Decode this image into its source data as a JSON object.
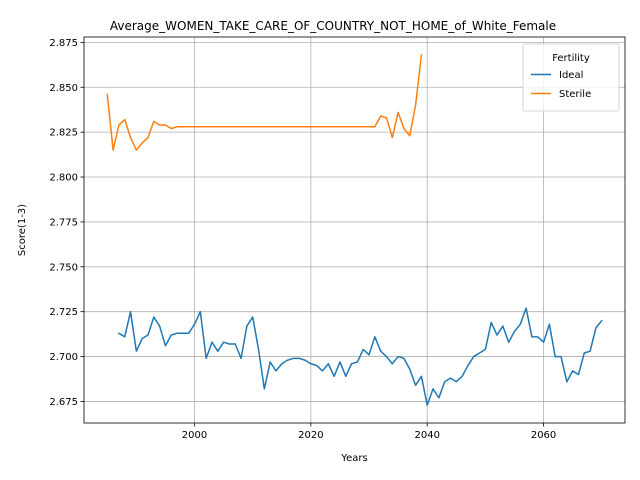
{
  "chart_data": {
    "type": "line",
    "title": "Average_WOMEN_TAKE_CARE_OF_COUNTRY_NOT_HOME_of_White_Female",
    "xlabel": "Years",
    "ylabel": "Score(1-3)",
    "xlim": [
      1981,
      2074
    ],
    "ylim": [
      2.663,
      2.878
    ],
    "xticks": [
      2000,
      2020,
      2040,
      2060
    ],
    "xtick_labels": [
      "2000",
      "2020",
      "2040",
      "2060"
    ],
    "yticks": [
      2.675,
      2.7,
      2.725,
      2.75,
      2.775,
      2.8,
      2.825,
      2.85,
      2.875
    ],
    "ytick_labels": [
      "2.675",
      "2.700",
      "2.725",
      "2.750",
      "2.775",
      "2.800",
      "2.825",
      "2.850",
      "2.875"
    ],
    "grid": true,
    "legend": {
      "title": "Fertility",
      "placement": "upper-right"
    },
    "series": [
      {
        "name": "Ideal",
        "color": "#1f77b4",
        "x": [
          1987,
          1988,
          1989,
          1990,
          1991,
          1992,
          1993,
          1994,
          1995,
          1996,
          1997,
          1998,
          1999,
          2000,
          2001,
          2002,
          2003,
          2004,
          2005,
          2006,
          2007,
          2008,
          2009,
          2010,
          2011,
          2012,
          2013,
          2014,
          2015,
          2016,
          2017,
          2018,
          2019,
          2020,
          2021,
          2022,
          2023,
          2024,
          2025,
          2026,
          2027,
          2028,
          2029,
          2030,
          2031,
          2032,
          2033,
          2034,
          2035,
          2036,
          2037,
          2038,
          2039,
          2040,
          2041,
          2042,
          2043,
          2044,
          2045,
          2046,
          2047,
          2048,
          2049,
          2050,
          2051,
          2052,
          2053,
          2054,
          2055,
          2056,
          2057,
          2058,
          2059,
          2060,
          2061,
          2062,
          2063,
          2064,
          2065,
          2066,
          2067,
          2068,
          2069,
          2070
        ],
        "y": [
          2.713,
          2.711,
          2.725,
          2.703,
          2.71,
          2.712,
          2.722,
          2.717,
          2.706,
          2.712,
          2.713,
          2.713,
          2.713,
          2.718,
          2.725,
          2.699,
          2.708,
          2.703,
          2.708,
          2.707,
          2.707,
          2.699,
          2.717,
          2.722,
          2.704,
          2.682,
          2.697,
          2.692,
          2.696,
          2.698,
          2.699,
          2.699,
          2.698,
          2.696,
          2.695,
          2.692,
          2.696,
          2.689,
          2.697,
          2.689,
          2.696,
          2.697,
          2.704,
          2.701,
          2.711,
          2.703,
          2.7,
          2.696,
          2.7,
          2.699,
          2.693,
          2.684,
          2.689,
          2.673,
          2.682,
          2.677,
          2.686,
          2.688,
          2.686,
          2.689,
          2.695,
          2.7,
          2.702,
          2.704,
          2.719,
          2.712,
          2.717,
          2.708,
          2.714,
          2.718,
          2.727,
          2.711,
          2.711,
          2.708,
          2.718,
          2.7,
          2.7,
          2.686,
          2.692,
          2.69,
          2.702,
          2.703,
          2.716,
          2.72
        ]
      },
      {
        "name": "Sterile",
        "color": "#ff7f0e",
        "x": [
          1985,
          1986,
          1987,
          1988,
          1989,
          1990,
          1991,
          1992,
          1993,
          1994,
          1995,
          1996,
          1997,
          1998,
          1999,
          2000,
          2001,
          2002,
          2003,
          2004,
          2005,
          2006,
          2007,
          2008,
          2009,
          2010,
          2011,
          2012,
          2013,
          2014,
          2015,
          2016,
          2017,
          2018,
          2019,
          2020,
          2021,
          2022,
          2023,
          2024,
          2025,
          2026,
          2027,
          2028,
          2029,
          2030,
          2031,
          2032,
          2033,
          2034,
          2035,
          2036,
          2037,
          2038,
          2039
        ],
        "y": [
          2.846,
          2.815,
          2.829,
          2.832,
          2.822,
          2.815,
          2.819,
          2.822,
          2.831,
          2.829,
          2.829,
          2.827,
          2.828,
          2.828,
          2.828,
          2.828,
          2.828,
          2.828,
          2.828,
          2.828,
          2.828,
          2.828,
          2.828,
          2.828,
          2.828,
          2.828,
          2.828,
          2.828,
          2.828,
          2.828,
          2.828,
          2.828,
          2.828,
          2.828,
          2.828,
          2.828,
          2.828,
          2.828,
          2.828,
          2.828,
          2.828,
          2.828,
          2.828,
          2.828,
          2.828,
          2.828,
          2.828,
          2.834,
          2.833,
          2.822,
          2.836,
          2.827,
          2.823,
          2.84,
          2.868
        ]
      }
    ]
  }
}
